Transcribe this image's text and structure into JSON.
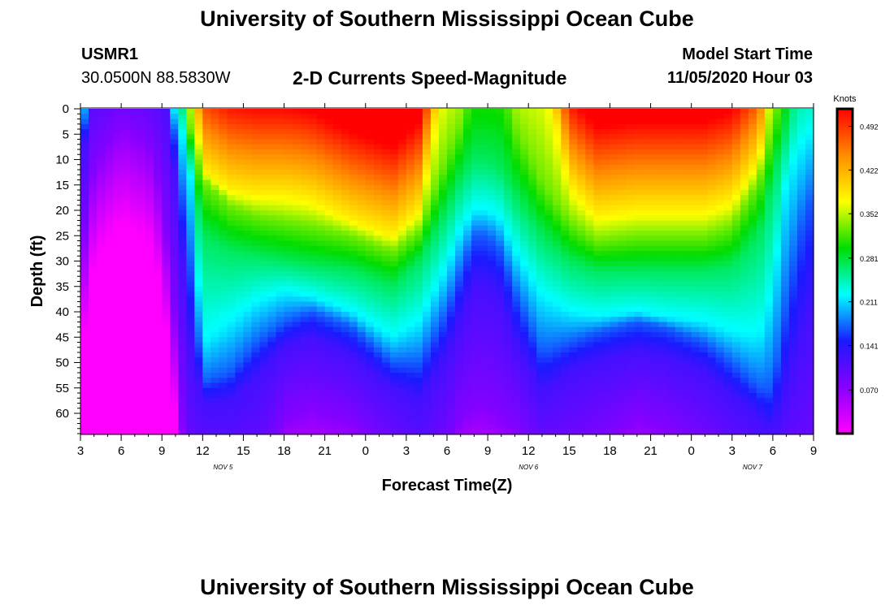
{
  "header": {
    "title": "University of Southern Mississippi Ocean Cube",
    "station_id": "USMR1",
    "station_coords": "30.0500N 88.5830W",
    "product": "2-D Currents Speed-Magnitude",
    "model_start_label": "Model Start Time",
    "model_start_value": "11/05/2020 Hour 03"
  },
  "footer": {
    "title": "University of Southern Mississippi Ocean Cube"
  },
  "chart_data": {
    "type": "heatmap",
    "title": "2-D Currents Speed-Magnitude",
    "xlabel": "Forecast Time(Z)",
    "ylabel": "Depth (ft)",
    "x_units": "hours since 11/05/2020 03Z",
    "xlim": [
      0,
      54
    ],
    "ylim": [
      0,
      64
    ],
    "y_inverted": true,
    "x_tick_labels": [
      "3",
      "6",
      "9",
      "12",
      "15",
      "18",
      "21",
      "0",
      "3",
      "6",
      "9",
      "12",
      "15",
      "18",
      "21",
      "0",
      "3",
      "6",
      "9"
    ],
    "x_ticks_hours": [
      0,
      3,
      6,
      9,
      12,
      15,
      18,
      21,
      24,
      27,
      30,
      33,
      36,
      39,
      42,
      45,
      48,
      51,
      54
    ],
    "date_labels": [
      {
        "label": "NOV 5",
        "hour": 10.5
      },
      {
        "label": "NOV 6",
        "hour": 33
      },
      {
        "label": "NOV 7",
        "hour": 49.5
      }
    ],
    "y_ticks": [
      0,
      5,
      10,
      15,
      20,
      25,
      30,
      35,
      40,
      45,
      50,
      55,
      60
    ],
    "colorbar": {
      "label": "Knots",
      "min": 0.0,
      "max": 0.52,
      "ticks": [
        "0.492",
        "0.422",
        "0.352",
        "0.281",
        "0.211",
        "0.141",
        "0.070"
      ],
      "tick_values": [
        0.492,
        0.422,
        0.352,
        0.281,
        0.211,
        0.141,
        0.07
      ]
    },
    "contour_levels_depth_ft": {
      "hours": [
        0,
        1,
        3,
        5,
        6,
        7,
        8,
        9,
        11,
        13,
        15,
        17,
        20,
        23,
        25,
        27,
        28,
        29,
        30,
        31,
        32,
        34,
        36,
        38,
        41,
        43,
        46,
        48,
        50,
        51,
        52,
        53,
        54
      ],
      "speed_0.38": [
        -10,
        -10,
        -10,
        -10,
        -10,
        -10,
        -10,
        12,
        16,
        17,
        17,
        18,
        22,
        25,
        20,
        -10,
        -10,
        -10,
        -10,
        -10,
        -10,
        -10,
        15,
        21,
        20,
        20,
        20,
        18,
        10,
        -10,
        -10,
        -10,
        -10
      ],
      "speed_0.33": [
        -10,
        -10,
        -10,
        -10,
        -10,
        -10,
        3,
        14,
        19,
        21,
        22,
        23,
        25,
        28,
        24,
        9,
        3,
        -10,
        -10,
        -10,
        3,
        14,
        22,
        26,
        25,
        25,
        25,
        23,
        14,
        3,
        -10,
        -10,
        -10
      ],
      "speed_0.27": [
        -10,
        -10,
        -10,
        -10,
        -10,
        -10,
        7,
        25,
        28,
        29,
        30,
        31,
        32,
        35,
        30,
        20,
        14,
        10,
        10,
        12,
        17,
        25,
        30,
        32,
        32,
        32,
        32,
        31,
        25,
        14,
        4,
        -10,
        -10
      ],
      "speed_0.22": [
        0,
        -10,
        -10,
        -10,
        -10,
        1,
        10,
        46,
        42,
        38,
        36,
        37,
        40,
        45,
        42,
        31,
        24,
        20,
        20,
        22,
        28,
        37,
        40,
        41,
        40,
        41,
        42,
        44,
        45,
        36,
        14,
        8,
        4
      ],
      "speed_0.17": [
        8,
        -10,
        -10,
        -10,
        -10,
        6,
        28,
        54,
        52,
        46,
        42,
        40,
        43,
        50,
        50,
        40,
        32,
        25,
        25,
        28,
        36,
        48,
        46,
        44,
        42,
        43,
        46,
        50,
        55,
        55,
        38,
        24,
        16
      ],
      "speed_0.12": [
        14,
        -10,
        -10,
        -10,
        -10,
        14,
        46,
        58,
        58,
        53,
        47,
        45,
        49,
        55,
        58,
        49,
        42,
        35,
        35,
        38,
        46,
        56,
        52,
        50,
        48,
        49,
        52,
        57,
        61,
        64,
        56,
        46,
        38
      ],
      "speed_0.08": [
        30,
        10,
        2,
        6,
        16,
        42,
        80,
        80,
        80,
        80,
        60,
        58,
        61,
        70,
        80,
        70,
        60,
        58,
        58,
        60,
        62,
        72,
        70,
        66,
        60,
        62,
        68,
        76,
        80,
        80,
        80,
        80,
        80
      ]
    }
  },
  "colors": {
    "background": "#ffffff",
    "scale_stops": [
      "#ff00ff",
      "#8800ff",
      "#1a1aff",
      "#00ffff",
      "#00dd00",
      "#ffff00",
      "#ff8c00",
      "#ff0000"
    ]
  }
}
